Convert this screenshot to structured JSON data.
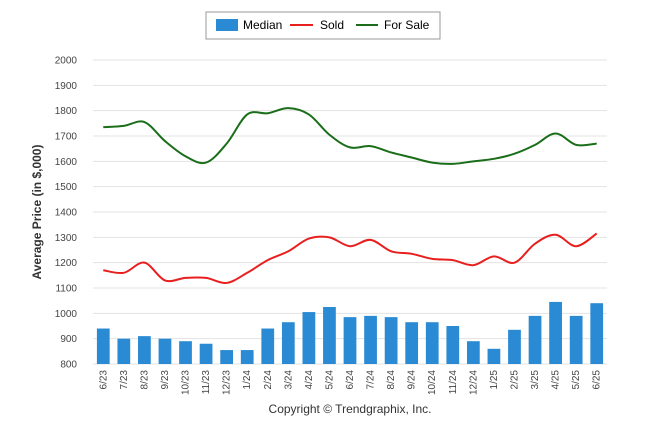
{
  "chart_data": {
    "type": "bar",
    "ylabel": "Average Price (in $,000)",
    "ylim": [
      800,
      2000
    ],
    "yticks": [
      800,
      900,
      1000,
      1100,
      1200,
      1300,
      1400,
      1500,
      1600,
      1700,
      1800,
      1900,
      2000
    ],
    "grid": true,
    "legend_position": "top-center",
    "categories": [
      "6/23",
      "7/23",
      "8/23",
      "9/23",
      "10/23",
      "11/23",
      "12/23",
      "1/24",
      "2/24",
      "3/24",
      "4/24",
      "5/24",
      "6/24",
      "7/24",
      "8/24",
      "9/24",
      "10/24",
      "11/24",
      "12/24",
      "1/25",
      "2/25",
      "3/25",
      "4/25",
      "5/25",
      "6/25"
    ],
    "series": [
      {
        "name": "Median",
        "kind": "bar",
        "color": "#2a8ad4",
        "values": [
          940,
          900,
          910,
          900,
          890,
          880,
          855,
          855,
          940,
          965,
          1005,
          1025,
          985,
          990,
          985,
          965,
          965,
          950,
          890,
          860,
          935,
          990,
          1045,
          990,
          1040
        ]
      },
      {
        "name": "Sold",
        "kind": "line",
        "color": "#e81f1f",
        "values": [
          1170,
          1160,
          1200,
          1130,
          1140,
          1140,
          1120,
          1160,
          1210,
          1245,
          1295,
          1300,
          1265,
          1290,
          1245,
          1235,
          1215,
          1210,
          1190,
          1225,
          1200,
          1275,
          1310,
          1265,
          1315
        ]
      },
      {
        "name": "For Sale",
        "kind": "line",
        "color": "#1a6e1a",
        "values": [
          1735,
          1740,
          1755,
          1680,
          1620,
          1595,
          1670,
          1785,
          1790,
          1810,
          1785,
          1705,
          1655,
          1660,
          1635,
          1615,
          1595,
          1590,
          1600,
          1610,
          1630,
          1665,
          1710,
          1665,
          1670
        ]
      }
    ]
  },
  "copyright": "Copyright © Trendgraphix, Inc."
}
